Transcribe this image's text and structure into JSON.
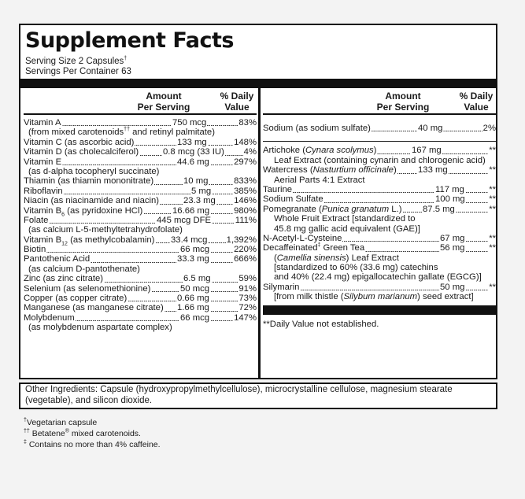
{
  "title": "Supplement Facts",
  "serving_size": "Serving Size 2 Capsules",
  "serving_size_mark": "†",
  "servings_per_container": "Servings Per Container 63",
  "header": {
    "amount": "Amount",
    "per_serving": "Per Serving",
    "pct": "% Daily",
    "value": "Value"
  },
  "left": {
    "vitA": {
      "name": "Vitamin A",
      "amount": "750 mcg",
      "dv": "83%",
      "sub": "(from mixed carotenoids",
      "sub_mark": "††",
      "sub2": " and retinyl palmitate)"
    },
    "vitC": {
      "name": "Vitamin C (as ascorbic acid)",
      "amount": "133 mg",
      "dv": "148%"
    },
    "vitD": {
      "name": "Vitamin D (as cholecalciferol)",
      "amount": "0.8 mcg (33 IU)",
      "dv": "4%"
    },
    "vitE": {
      "name": "Vitamin E",
      "amount": "44.6 mg",
      "dv": "297%",
      "sub": "(as d-alpha tocopheryl succinate)"
    },
    "thiamin": {
      "name": "Thiamin (as thiamin mononitrate)",
      "amount": "10 mg",
      "dv": "833%"
    },
    "riboflavin": {
      "name": "Riboflavin",
      "amount": "5 mg",
      "dv": "385%"
    },
    "niacin": {
      "name": "Niacin (as niacinamide and niacin)",
      "amount": "23.3 mg",
      "dv": "146%"
    },
    "b6": {
      "name_pre": "Vitamin B",
      "name_sub": "6",
      "name_post": " (as pyridoxine HCl)",
      "amount": "16.66 mg",
      "dv": "980%"
    },
    "folate": {
      "name": "Folate",
      "amount": "445 mcg DFE",
      "dv": "111%",
      "sub": "(as calcium L-5-methyltetrahydrofolate)"
    },
    "b12": {
      "name_pre": "Vitamin B",
      "name_sub": "12",
      "name_post": " (as methylcobalamin)",
      "amount": "33.4 mcg",
      "dv": "1,392%"
    },
    "biotin": {
      "name": "Biotin",
      "amount": "66 mcg",
      "dv": "220%"
    },
    "panto": {
      "name": "Pantothenic Acid",
      "amount": "33.3 mg",
      "dv": "666%",
      "sub": "(as calcium D-pantothenate)"
    },
    "zinc": {
      "name": "Zinc (as zinc citrate)",
      "amount": "6.5 mg",
      "dv": "59%"
    },
    "selenium": {
      "name": "Selenium (as selenomethionine)",
      "amount": "50 mcg",
      "dv": "91%"
    },
    "copper": {
      "name": "Copper (as copper citrate)",
      "amount": "0.66 mg",
      "dv": "73%"
    },
    "manganese": {
      "name": "Manganese (as manganese citrate)",
      "amount": "1.66 mg",
      "dv": "72%"
    },
    "molybdenum": {
      "name": "Molybdenum",
      "amount": "66 mcg",
      "dv": "147%",
      "sub": "(as molybdenum aspartate complex)"
    }
  },
  "right": {
    "sodium1": {
      "name": "Sodium (as sodium sulfate)",
      "amount": "40 mg",
      "dv": "2%"
    },
    "artichoke": {
      "name_pre": "Artichoke (",
      "name_it": "Cynara scolymus",
      "name_post": ")",
      "amount": "167 mg",
      "dv": "**",
      "sub1": "Leaf Extract (containing cynarin and chlorogenic acid)"
    },
    "watercress": {
      "name_pre": "Watercress (",
      "name_it": "Nasturtium officinale",
      "name_post": ")",
      "amount": "133 mg",
      "dv": "**",
      "sub1": "Aerial Parts 4:1 Extract"
    },
    "taurine": {
      "name": "Taurine",
      "amount": "117 mg",
      "dv": "**"
    },
    "sodsulf": {
      "name": "Sodium Sulfate",
      "amount": "100 mg",
      "dv": "**"
    },
    "pomegranate": {
      "name_pre": "Pomegranate (",
      "name_it": "Punica granatum",
      "name_post": " L.)",
      "amount": "87.5 mg",
      "dv": "**",
      "sub1": "Whole Fruit Extract [standardized to",
      "sub2": "45.8 mg gallic acid equivalent (GAE)]"
    },
    "nac": {
      "name": "N-Acetyl-L-Cysteine",
      "amount": "67 mg",
      "dv": "**"
    },
    "greentea": {
      "name_pre": "Decaffeinated",
      "name_mark": "‡",
      "name_post": " Green Tea",
      "amount": "56 mg",
      "dv": "**",
      "sub1_pre": "(",
      "sub1_it": "Camellia sinensis",
      "sub1_post": ") Leaf Extract",
      "sub2": "[standardized to 60% (33.6 mg) catechins",
      "sub3": "and 40% (22.4 mg) epigallocatechin gallate (EGCG)]"
    },
    "silymarin": {
      "name": "Silymarin",
      "amount": "50 mg",
      "dv": "**",
      "sub1_pre": "[from milk thistle (",
      "sub1_it": "Silybum marianum",
      "sub1_post": ") seed extract]"
    }
  },
  "dv_note": "**Daily Value not established.",
  "other_ingredients": "Other Ingredients: Capsule (hydroxypropylmethylcellulose), microcrystalline cellulose, magnesium stearate (vegetable), and silicon dioxide.",
  "footnotes": {
    "f1_mark": "†",
    "f1": "Vegetarian capsule",
    "f2_mark": "††",
    "f2": " Betatene",
    "f2_reg": "®",
    "f2_post": " mixed carotenoids.",
    "f3_mark": "‡",
    "f3": " Contains no more than 4% caffeine."
  },
  "colors": {
    "ink": "#111111",
    "page": "#f3f3f3",
    "panel": "#ffffff"
  }
}
